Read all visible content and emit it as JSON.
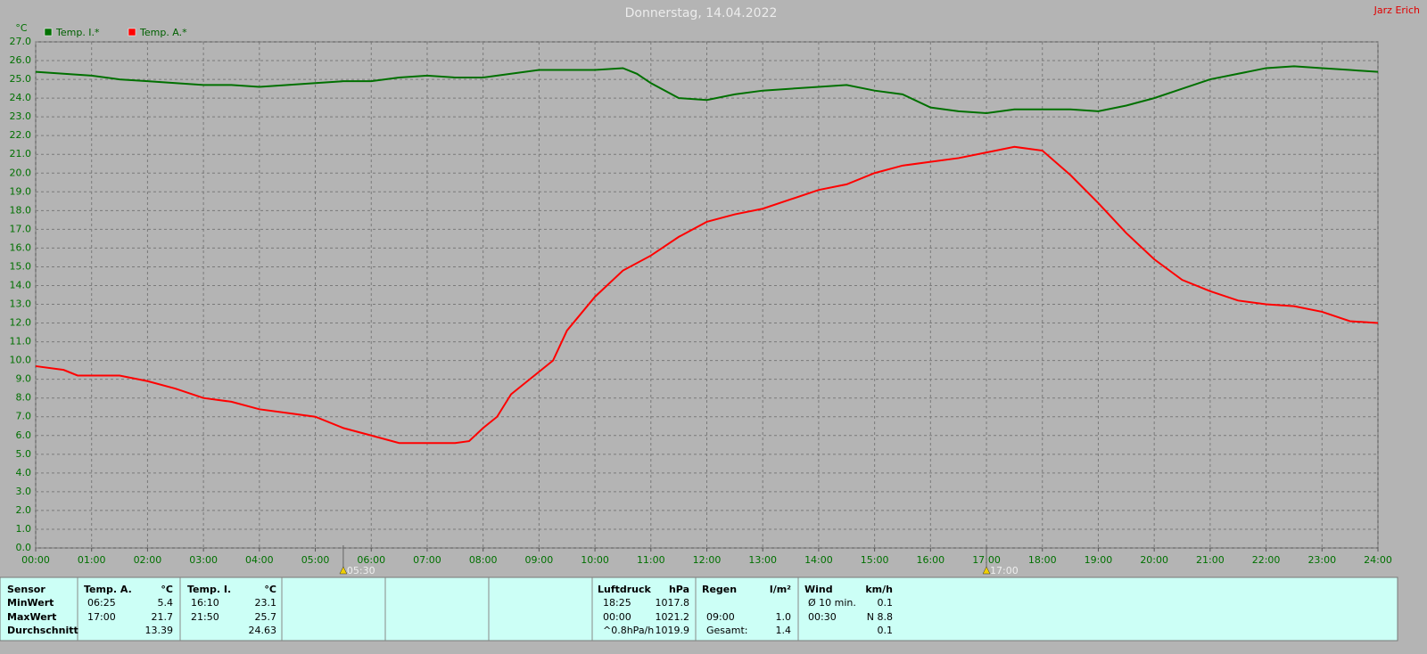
{
  "chart_data": {
    "type": "line",
    "title": "Donnerstag, 14.04.2022",
    "credit": "Jarz Erich",
    "y_label": "°C",
    "legend": "upper-left",
    "grid": true,
    "xlim": [
      0,
      24
    ],
    "ylim": [
      0,
      27
    ],
    "xticks": [
      {
        "value": 0,
        "label": "00:00"
      },
      {
        "value": 1,
        "label": "01:00"
      },
      {
        "value": 2,
        "label": "02:00"
      },
      {
        "value": 3,
        "label": "03:00"
      },
      {
        "value": 4,
        "label": "04:00"
      },
      {
        "value": 5,
        "label": "05:00"
      },
      {
        "value": 6,
        "label": "06:00"
      },
      {
        "value": 7,
        "label": "07:00"
      },
      {
        "value": 8,
        "label": "08:00"
      },
      {
        "value": 9,
        "label": "09:00"
      },
      {
        "value": 10,
        "label": "10:00"
      },
      {
        "value": 11,
        "label": "11:00"
      },
      {
        "value": 12,
        "label": "12:00"
      },
      {
        "value": 13,
        "label": "13:00"
      },
      {
        "value": 14,
        "label": "14:00"
      },
      {
        "value": 15,
        "label": "15:00"
      },
      {
        "value": 16,
        "label": "16:00"
      },
      {
        "value": 17,
        "label": "17:00"
      },
      {
        "value": 18,
        "label": "18:00"
      },
      {
        "value": 19,
        "label": "19:00"
      },
      {
        "value": 20,
        "label": "20:00"
      },
      {
        "value": 21,
        "label": "21:00"
      },
      {
        "value": 22,
        "label": "22:00"
      },
      {
        "value": 23,
        "label": "23:00"
      },
      {
        "value": 24,
        "label": "24:00"
      }
    ],
    "yticks": [
      {
        "value": 0,
        "label": "0.0"
      },
      {
        "value": 1,
        "label": "1.0"
      },
      {
        "value": 2,
        "label": "2.0"
      },
      {
        "value": 3,
        "label": "3.0"
      },
      {
        "value": 4,
        "label": "4.0"
      },
      {
        "value": 5,
        "label": "5.0"
      },
      {
        "value": 6,
        "label": "6.0"
      },
      {
        "value": 7,
        "label": "7.0"
      },
      {
        "value": 8,
        "label": "8.0"
      },
      {
        "value": 9,
        "label": "9.0"
      },
      {
        "value": 10,
        "label": "10.0"
      },
      {
        "value": 11,
        "label": "11.0"
      },
      {
        "value": 12,
        "label": "12.0"
      },
      {
        "value": 13,
        "label": "13.0"
      },
      {
        "value": 14,
        "label": "14.0"
      },
      {
        "value": 15,
        "label": "15.0"
      },
      {
        "value": 16,
        "label": "16.0"
      },
      {
        "value": 17,
        "label": "17.0"
      },
      {
        "value": 18,
        "label": "18.0"
      },
      {
        "value": 19,
        "label": "19.0"
      },
      {
        "value": 20,
        "label": "20.0"
      },
      {
        "value": 21,
        "label": "21.0"
      },
      {
        "value": 22,
        "label": "22.0"
      },
      {
        "value": 23,
        "label": "23.0"
      },
      {
        "value": 24,
        "label": "24.0"
      },
      {
        "value": 25,
        "label": "25.0"
      },
      {
        "value": 26,
        "label": "26.0"
      },
      {
        "value": 27,
        "label": "27.0"
      }
    ],
    "annotations": [
      {
        "value": 5.5,
        "label": "05:30"
      },
      {
        "value": 17,
        "label": "17:00"
      }
    ],
    "series": [
      {
        "name": "Temp. I.*",
        "color": "#007000",
        "x": [
          0,
          0.5,
          1,
          1.5,
          2,
          2.5,
          3,
          3.5,
          4,
          4.5,
          5,
          5.5,
          6,
          6.5,
          7,
          7.5,
          8,
          8.5,
          9,
          9.5,
          10,
          10.5,
          10.75,
          11,
          11.5,
          12,
          12.5,
          13,
          13.5,
          14,
          14.5,
          15,
          15.5,
          16,
          16.5,
          17,
          17.5,
          18,
          18.5,
          19,
          19.5,
          20,
          20.5,
          21,
          21.5,
          22,
          22.5,
          23,
          23.5,
          24
        ],
        "values": [
          25.4,
          25.3,
          25.2,
          25.0,
          24.9,
          24.8,
          24.7,
          24.7,
          24.6,
          24.7,
          24.8,
          24.9,
          24.9,
          25.1,
          25.2,
          25.1,
          25.1,
          25.3,
          25.5,
          25.5,
          25.5,
          25.6,
          25.3,
          24.8,
          24.0,
          23.9,
          24.2,
          24.4,
          24.5,
          24.6,
          24.7,
          24.4,
          24.2,
          23.5,
          23.3,
          23.2,
          23.4,
          23.4,
          23.4,
          23.3,
          23.6,
          24.0,
          24.5,
          25.0,
          25.3,
          25.6,
          25.7,
          25.6,
          25.5,
          25.4
        ]
      },
      {
        "name": "Temp. A.*",
        "color": "#ff0000",
        "x": [
          0,
          0.5,
          0.75,
          1,
          1.5,
          2,
          2.5,
          3,
          3.5,
          4,
          4.5,
          5,
          5.5,
          6,
          6.5,
          7,
          7.5,
          7.75,
          8,
          8.25,
          8.5,
          9,
          9.25,
          9.5,
          10,
          10.5,
          11,
          11.5,
          12,
          12.5,
          13,
          13.5,
          14,
          14.5,
          15,
          15.5,
          16,
          16.5,
          17,
          17.5,
          18,
          18.5,
          19,
          19.5,
          20,
          20.5,
          21,
          21.5,
          22,
          22.5,
          23,
          23.5,
          24
        ],
        "values": [
          9.7,
          9.5,
          9.2,
          9.2,
          9.2,
          8.9,
          8.5,
          8.0,
          7.8,
          7.4,
          7.2,
          7.0,
          6.4,
          6.0,
          5.6,
          5.6,
          5.6,
          5.7,
          6.4,
          7.0,
          8.2,
          9.4,
          10.0,
          11.6,
          13.4,
          14.8,
          15.6,
          16.6,
          17.4,
          17.8,
          18.1,
          18.6,
          19.1,
          19.4,
          20.0,
          20.4,
          20.6,
          20.8,
          21.1,
          21.4,
          21.2,
          19.9,
          18.4,
          16.8,
          15.4,
          14.3,
          13.7,
          13.2,
          13.0,
          12.9,
          12.6,
          12.1,
          12.0
        ]
      }
    ]
  },
  "stats_table": {
    "block1": {
      "header": [
        "Sensor",
        "Temp. A.",
        "°C",
        "Temp. I.",
        "°C"
      ],
      "rows": [
        [
          "MinWert",
          "06:25",
          "5.4",
          "16:10",
          "23.1"
        ],
        [
          "MaxWert",
          "17:00",
          "21.7",
          "21:50",
          "25.7"
        ],
        [
          "Durchschnitt",
          null,
          "13.39",
          null,
          "24.63"
        ]
      ]
    },
    "block2": {
      "header": [
        "Luftdruck",
        "hPa",
        "Regen",
        "l/m²",
        "Wind",
        "km/h"
      ],
      "rows": [
        [
          "18:25",
          "1017.8",
          null,
          null,
          "Ø 10 min.",
          "0.1"
        ],
        [
          "00:00",
          "1021.2",
          "09:00",
          "1.0",
          "00:30",
          "N 8.8"
        ],
        [
          "^0.8hPa/h",
          "1019.9",
          "Gesamt:",
          "1.4",
          null,
          "0.1"
        ]
      ]
    }
  }
}
